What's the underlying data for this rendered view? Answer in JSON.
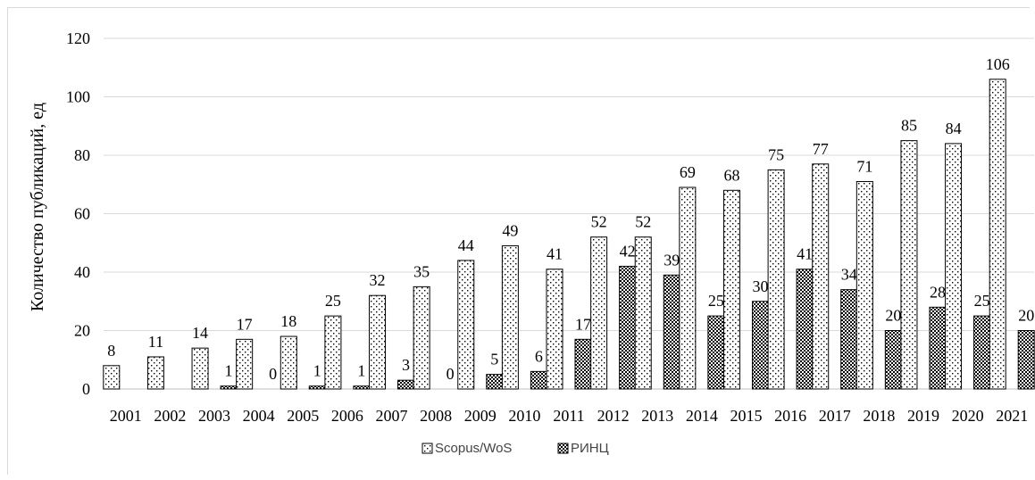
{
  "chart_data": {
    "type": "bar",
    "ylabel": "Количество публикаций, ед",
    "xlabel": "",
    "ylim": [
      0,
      120
    ],
    "yticks": [
      0,
      20,
      40,
      60,
      80,
      100,
      120
    ],
    "grid": true,
    "legend_position": "bottom",
    "categories": [
      "2001",
      "2002",
      "2003",
      "2004",
      "2005",
      "2006",
      "2007",
      "2008",
      "2009",
      "2010",
      "2011",
      "2012",
      "2013",
      "2014",
      "2015",
      "2016",
      "2017",
      "2018",
      "2019",
      "2020",
      "2021"
    ],
    "series": [
      {
        "name": "Scopus/WoS",
        "pattern": "dots",
        "values": [
          8,
          11,
          14,
          17,
          18,
          25,
          32,
          35,
          44,
          49,
          41,
          52,
          52,
          69,
          68,
          75,
          77,
          71,
          85,
          84,
          106
        ],
        "labels": [
          "8",
          "11",
          "14",
          "17",
          "18",
          "25",
          "32",
          "35",
          "44",
          "49",
          "41",
          "52",
          "52",
          "69",
          "68",
          "75",
          "77",
          "71",
          "85",
          "84",
          "106"
        ]
      },
      {
        "name": "РИНЦ",
        "pattern": "checker",
        "values": [
          0,
          0,
          1,
          0,
          1,
          1,
          3,
          0,
          5,
          6,
          17,
          42,
          39,
          25,
          30,
          41,
          34,
          20,
          28,
          25,
          20
        ],
        "labels": [
          "",
          "",
          "1",
          "0",
          "1",
          "1",
          "3",
          "0",
          "5",
          "6",
          "17",
          "42",
          "39",
          "25",
          "30",
          "41",
          "34",
          "20",
          "28",
          "25",
          "20"
        ]
      }
    ]
  },
  "colors": {
    "grid": "#d9d9d9",
    "ink": "#000000",
    "background": "#ffffff"
  }
}
